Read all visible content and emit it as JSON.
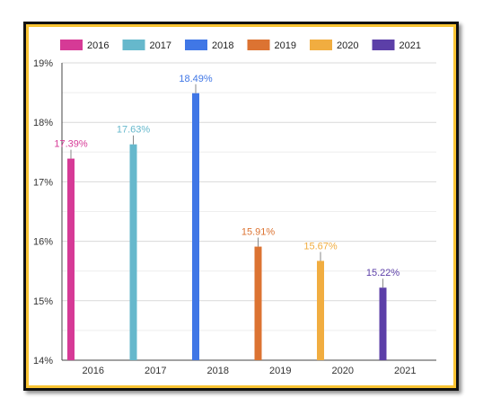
{
  "chart_data": {
    "type": "bar",
    "categories": [
      "2016",
      "2017",
      "2018",
      "2019",
      "2020",
      "2021"
    ],
    "series": [
      {
        "name": "2016",
        "color": "#d63a96",
        "values": [
          17.39,
          null,
          null,
          null,
          null,
          null
        ],
        "label": "17.39%"
      },
      {
        "name": "2017",
        "color": "#66b8cc",
        "values": [
          null,
          17.63,
          null,
          null,
          null,
          null
        ],
        "label": "17.63%"
      },
      {
        "name": "2018",
        "color": "#4077e6",
        "values": [
          null,
          null,
          18.49,
          null,
          null,
          null
        ],
        "label": "18.49%"
      },
      {
        "name": "2019",
        "color": "#dc7332",
        "values": [
          null,
          null,
          null,
          15.91,
          null,
          null
        ],
        "label": "15.91%"
      },
      {
        "name": "2020",
        "color": "#f1ad40",
        "values": [
          null,
          null,
          null,
          null,
          15.67,
          null
        ],
        "label": "15.67%"
      },
      {
        "name": "2021",
        "color": "#5c3fa8",
        "values": [
          null,
          null,
          null,
          null,
          null,
          15.22
        ],
        "label": "15.22%"
      }
    ],
    "ylim": [
      14,
      19
    ],
    "yticks": [
      14,
      15,
      16,
      17,
      18,
      19
    ],
    "ytick_labels": [
      "14%",
      "15%",
      "16%",
      "17%",
      "18%",
      "19%"
    ],
    "grid": true,
    "legend": "top"
  }
}
